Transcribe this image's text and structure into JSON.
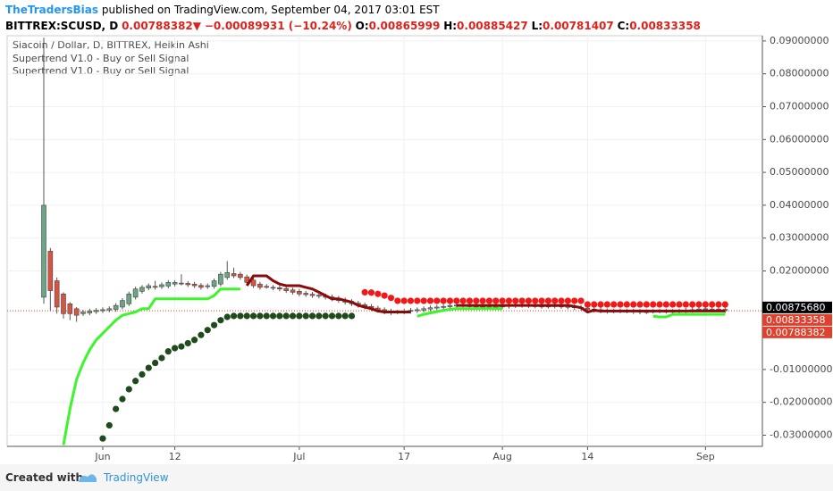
{
  "header": {
    "author": "TheTradersBias",
    "published": "published on TradingView.com, September 04, 2017 03:01 EST",
    "symbol": "BITTREX:SCUSD, D",
    "last": "0.00788382",
    "arrow": "▼",
    "change": "−0.00089931 (−10.24%)",
    "ohlc": [
      {
        "label": "O:",
        "value": "0.00865999"
      },
      {
        "label": "H:",
        "value": "0.00885427"
      },
      {
        "label": "L:",
        "value": "0.00781407"
      },
      {
        "label": "C:",
        "value": "0.00833358"
      }
    ]
  },
  "chart_data": {
    "type": "candlestick",
    "legend": [
      "Siacoin / Dollar, D, BITTREX, Heikin Ashi",
      "Supertrend V1.0 - Buy or Sell Signal",
      "Supertrend V1.0 - Buy or Sell Signal"
    ],
    "categories": [
      null,
      null,
      null,
      null,
      null,
      null,
      null,
      null,
      null,
      "Jun",
      null,
      null,
      null,
      null,
      null,
      null,
      null,
      null,
      null,
      null,
      "12",
      null,
      null,
      null,
      null,
      null,
      null,
      null,
      null,
      null,
      null,
      null,
      null,
      null,
      null,
      null,
      null,
      null,
      null,
      "Jul",
      null,
      null,
      null,
      null,
      null,
      null,
      null,
      null,
      null,
      null,
      null,
      null,
      null,
      null,
      null,
      "17",
      null,
      null,
      null,
      null,
      null,
      null,
      null,
      null,
      null,
      null,
      null,
      null,
      null,
      null,
      "Aug",
      null,
      null,
      null,
      null,
      null,
      null,
      null,
      null,
      null,
      null,
      null,
      null,
      "14",
      null,
      null,
      null,
      null,
      null,
      null,
      null,
      null,
      null,
      null,
      null,
      null,
      null,
      null,
      null,
      null,
      null,
      "Sep",
      null,
      null,
      null
    ],
    "open": [
      0.012,
      0.026,
      0.017,
      0.013,
      0.01,
      0.0085,
      0.007,
      0.0072,
      0.0076,
      0.0079,
      0.0081,
      0.0083,
      0.009,
      0.01,
      0.012,
      0.0138,
      0.0148,
      0.0153,
      0.0152,
      0.0154,
      0.016,
      0.0163,
      0.0162,
      0.016,
      0.0156,
      0.0152,
      0.0153,
      0.016,
      0.018,
      0.0192,
      0.019,
      0.0182,
      0.0172,
      0.016,
      0.0153,
      0.015,
      0.0149,
      0.0146,
      0.0142,
      0.0138,
      0.0132,
      0.0129,
      0.0126,
      0.0124,
      0.0121,
      0.0117,
      0.0112,
      0.0107,
      0.0102,
      0.0097,
      0.0092,
      0.0087,
      0.0082,
      0.0078,
      0.0075,
      0.0075,
      0.0077,
      0.0079,
      0.0081,
      0.0084,
      0.0087,
      0.0089,
      0.0091,
      0.0093,
      0.0095,
      0.0094,
      0.0093,
      0.0091,
      0.009,
      0.0091,
      0.0091,
      0.0092,
      0.0094,
      0.0095,
      0.0095,
      0.0094,
      0.0093,
      0.0093,
      0.0093,
      0.0093,
      0.0092,
      0.0091,
      0.0089,
      0.0087,
      0.0084,
      0.0082,
      0.0079,
      0.0078,
      0.0078,
      0.0078,
      0.0078,
      0.0077,
      0.0076,
      0.0076,
      0.0077,
      0.0077,
      0.0077,
      0.0077,
      0.0078,
      0.008,
      0.0082,
      0.0083,
      0.0084,
      0.0084,
      0.0083
    ],
    "high": [
      0.091,
      0.027,
      0.018,
      0.0135,
      0.0105,
      0.009,
      0.0082,
      0.0085,
      0.0087,
      0.0089,
      0.0092,
      0.0102,
      0.0117,
      0.0137,
      0.0152,
      0.0157,
      0.0162,
      0.017,
      0.0165,
      0.0172,
      0.0172,
      0.019,
      0.0169,
      0.0167,
      0.0163,
      0.0162,
      0.0177,
      0.0197,
      0.023,
      0.021,
      0.0197,
      0.0189,
      0.0179,
      0.0167,
      0.016,
      0.0157,
      0.0156,
      0.0153,
      0.0149,
      0.0145,
      0.0139,
      0.0136,
      0.0133,
      0.0131,
      0.0128,
      0.0124,
      0.0119,
      0.0114,
      0.0109,
      0.0104,
      0.0099,
      0.0094,
      0.0089,
      0.0085,
      0.0082,
      0.0085,
      0.0087,
      0.0089,
      0.0092,
      0.0095,
      0.0097,
      0.0099,
      0.0102,
      0.0103,
      0.0102,
      0.0101,
      0.01,
      0.0098,
      0.0097,
      0.0099,
      0.01,
      0.0102,
      0.0103,
      0.0102,
      0.0102,
      0.0101,
      0.01,
      0.01,
      0.0101,
      0.01,
      0.0099,
      0.0098,
      0.0096,
      0.0094,
      0.0091,
      0.0089,
      0.0086,
      0.0085,
      0.0086,
      0.0085,
      0.0085,
      0.0084,
      0.0083,
      0.0084,
      0.0085,
      0.0085,
      0.0084,
      0.0085,
      0.0087,
      0.0089,
      0.0091,
      0.0092,
      0.0091,
      0.0091,
      0.009
    ],
    "low": [
      0.01,
      0.008,
      0.007,
      0.0055,
      0.005,
      0.0045,
      0.0063,
      0.0065,
      0.0069,
      0.0072,
      0.0074,
      0.0076,
      0.0083,
      0.0093,
      0.0113,
      0.0131,
      0.0141,
      0.0143,
      0.0145,
      0.0147,
      0.0153,
      0.0156,
      0.0151,
      0.0148,
      0.0143,
      0.0145,
      0.0146,
      0.0153,
      0.0173,
      0.0178,
      0.0173,
      0.0158,
      0.0148,
      0.0143,
      0.0146,
      0.0141,
      0.0138,
      0.0133,
      0.0128,
      0.0123,
      0.0121,
      0.0118,
      0.0116,
      0.0113,
      0.0108,
      0.0103,
      0.0098,
      0.0093,
      0.0088,
      0.0083,
      0.0078,
      0.0073,
      0.0068,
      0.0066,
      0.0068,
      0.0068,
      0.007,
      0.0072,
      0.0074,
      0.0077,
      0.008,
      0.0082,
      0.0084,
      0.0086,
      0.0087,
      0.0085,
      0.0083,
      0.0082,
      0.0083,
      0.0084,
      0.0084,
      0.0085,
      0.0087,
      0.0088,
      0.0087,
      0.0086,
      0.0085,
      0.0085,
      0.0086,
      0.0085,
      0.0083,
      0.0081,
      0.0079,
      0.0076,
      0.0073,
      0.0071,
      0.007,
      0.0071,
      0.0071,
      0.0071,
      0.0069,
      0.0068,
      0.0069,
      0.007,
      0.0071,
      0.007,
      0.0069,
      0.0069,
      0.0071,
      0.0073,
      0.0075,
      0.0077,
      0.0077,
      0.0076,
      0.0072
    ],
    "close": [
      0.04,
      0.014,
      0.009,
      0.007,
      0.007,
      0.0065,
      0.0075,
      0.0078,
      0.008,
      0.0082,
      0.0085,
      0.0095,
      0.011,
      0.013,
      0.0145,
      0.015,
      0.0155,
      0.015,
      0.0158,
      0.0165,
      0.0165,
      0.0162,
      0.0158,
      0.0155,
      0.015,
      0.0155,
      0.017,
      0.019,
      0.0195,
      0.0185,
      0.018,
      0.0165,
      0.0155,
      0.015,
      0.015,
      0.0148,
      0.0145,
      0.014,
      0.0135,
      0.013,
      0.0128,
      0.0125,
      0.0123,
      0.012,
      0.0115,
      0.011,
      0.0105,
      0.01,
      0.0095,
      0.009,
      0.0085,
      0.008,
      0.0075,
      0.0073,
      0.0075,
      0.0078,
      0.008,
      0.0082,
      0.0085,
      0.0088,
      0.009,
      0.0092,
      0.0095,
      0.0096,
      0.0094,
      0.0092,
      0.009,
      0.0089,
      0.009,
      0.0092,
      0.0093,
      0.0095,
      0.0096,
      0.0095,
      0.0094,
      0.0093,
      0.0092,
      0.0093,
      0.0094,
      0.0092,
      0.009,
      0.0088,
      0.0086,
      0.0083,
      0.008,
      0.0078,
      0.0077,
      0.0078,
      0.0079,
      0.0078,
      0.0076,
      0.0075,
      0.0076,
      0.0077,
      0.0078,
      0.0077,
      0.0076,
      0.0078,
      0.008,
      0.0082,
      0.0084,
      0.0085,
      0.0084,
      0.0083,
      0.0079
    ],
    "up_color": "#6ba583",
    "down_color": "#d75442",
    "lines": [
      {
        "color": "#3cf52a",
        "values": [
          null,
          null,
          null,
          -0.033,
          -0.022,
          -0.013,
          -0.008,
          -0.004,
          -0.001,
          0.001,
          0.003,
          0.005,
          0.0065,
          0.007,
          0.0075,
          0.0085,
          0.0085,
          0.0115,
          0.0115,
          0.0115,
          0.0115,
          0.0115,
          0.0115,
          0.0115,
          0.0115,
          0.0115,
          0.0125,
          0.0145,
          0.0145,
          0.0145,
          0.0145,
          null,
          null,
          null,
          null,
          null,
          null,
          null,
          null,
          null,
          null,
          null,
          null,
          null,
          null,
          null,
          null,
          null,
          null,
          null,
          null,
          null,
          null,
          null,
          null,
          null,
          null,
          0.0062,
          0.0068,
          0.0072,
          0.0076,
          0.008,
          0.0083,
          0.0085,
          0.0085,
          0.0085,
          0.0085,
          0.0085,
          0.0085,
          0.0085,
          0.0085,
          null,
          null,
          null,
          null,
          null,
          null,
          null,
          null,
          null,
          null,
          null,
          null,
          null,
          null,
          null,
          null,
          null,
          null,
          null,
          null,
          null,
          null,
          0.0062,
          0.006,
          0.006,
          0.0068,
          0.0068,
          0.0068,
          0.0068,
          0.0068,
          0.0068,
          0.0068,
          0.0068,
          0.0068
        ]
      },
      {
        "color": "#8b0a0a",
        "values": [
          null,
          null,
          null,
          null,
          null,
          null,
          null,
          null,
          null,
          null,
          null,
          null,
          null,
          null,
          null,
          null,
          null,
          null,
          null,
          null,
          null,
          null,
          null,
          null,
          null,
          null,
          null,
          null,
          null,
          null,
          null,
          0.0155,
          0.0185,
          0.0185,
          0.0185,
          0.017,
          0.016,
          0.0155,
          0.0155,
          0.0155,
          0.015,
          0.0145,
          0.0135,
          0.0125,
          0.0115,
          0.0115,
          0.011,
          0.0105,
          0.0095,
          0.009,
          0.0085,
          0.0078,
          0.0075,
          0.0075,
          0.0075,
          0.0075,
          0.0075,
          null,
          null,
          null,
          null,
          null,
          null,
          0.0095,
          0.0095,
          0.0095,
          0.0095,
          0.0095,
          0.0095,
          0.0095,
          0.0095,
          0.0095,
          0.0095,
          0.0095,
          0.0095,
          0.0095,
          0.0095,
          0.0095,
          0.0095,
          0.0095,
          0.0095,
          0.0092,
          0.0088,
          0.0075,
          0.008,
          0.0078,
          0.0078,
          0.0078,
          0.0078,
          0.0078,
          0.0078,
          0.0078,
          0.0078,
          0.0078,
          0.0078,
          0.0078,
          0.0078,
          0.0078,
          0.0078,
          0.0078,
          0.0078,
          0.0078,
          0.0078,
          0.0078,
          0.0078
        ]
      }
    ],
    "dots": [
      {
        "color": "#1f4a1c",
        "values": [
          null,
          null,
          null,
          null,
          null,
          null,
          null,
          null,
          null,
          -0.031,
          -0.027,
          -0.022,
          -0.019,
          -0.016,
          -0.0135,
          -0.0115,
          -0.0095,
          -0.008,
          -0.0065,
          -0.0045,
          -0.0035,
          -0.003,
          -0.002,
          -0.001,
          0.0005,
          0.002,
          0.0035,
          0.005,
          0.006,
          0.0063,
          0.0063,
          0.0063,
          0.0063,
          0.0063,
          0.0063,
          0.0063,
          0.0063,
          0.0063,
          0.0063,
          0.0063,
          0.0063,
          0.0063,
          0.0063,
          0.0063,
          0.0063,
          0.0063,
          0.0063,
          0.0063,
          null,
          null,
          null,
          null,
          null,
          null,
          null,
          null,
          null,
          null,
          null,
          null,
          null,
          null,
          null,
          null,
          null,
          null,
          null,
          null,
          null,
          null,
          null,
          null,
          null,
          null,
          null,
          null,
          null,
          null,
          null,
          null,
          null,
          null,
          null,
          null,
          null,
          null,
          null,
          null,
          null,
          null,
          null,
          null,
          null,
          null,
          null,
          null,
          null,
          null,
          null,
          null,
          null,
          null,
          null,
          null,
          null
        ]
      },
      {
        "color": "#f21818",
        "values": [
          null,
          null,
          null,
          null,
          null,
          null,
          null,
          null,
          null,
          null,
          null,
          null,
          null,
          null,
          null,
          null,
          null,
          null,
          null,
          null,
          null,
          null,
          null,
          null,
          null,
          null,
          null,
          null,
          null,
          null,
          null,
          null,
          null,
          null,
          null,
          null,
          null,
          null,
          null,
          null,
          null,
          null,
          null,
          null,
          null,
          null,
          null,
          null,
          null,
          0.0135,
          0.0134,
          0.013,
          0.0125,
          0.0118,
          0.0109,
          0.0109,
          0.0109,
          0.0109,
          0.0109,
          0.0109,
          0.0109,
          0.0109,
          0.0109,
          0.0109,
          0.0109,
          0.0109,
          0.0109,
          0.0109,
          0.0109,
          0.0109,
          0.0109,
          0.0109,
          0.0109,
          0.0109,
          0.0109,
          0.0109,
          0.0109,
          0.0109,
          0.0109,
          0.0109,
          0.0109,
          0.0109,
          0.0109,
          0.0098,
          0.0098,
          0.0098,
          0.0098,
          0.0098,
          0.0098,
          0.0098,
          0.0098,
          0.0098,
          0.0098,
          0.0098,
          0.0098,
          0.0098,
          0.0098,
          0.0098,
          0.0098,
          0.0098,
          0.0098,
          0.0098,
          0.0098,
          0.0098,
          0.0098
        ]
      }
    ],
    "price_labels": {
      "values": [
        0.0087568,
        0.00833358,
        0.00788382
      ],
      "value_labels": [
        "0.00875680",
        "0.00833358",
        "0.00788382"
      ],
      "colors": [
        "#000000",
        "#e0402c",
        "#e0402c"
      ]
    },
    "ylim": [
      -0.0334,
      0.0916
    ],
    "yticks": [
      {
        "value": 0.09,
        "label": "0.09000000"
      },
      {
        "value": 0.08,
        "label": "0.08000000"
      },
      {
        "value": 0.07,
        "label": "0.07000000"
      },
      {
        "value": 0.06,
        "label": "0.06000000"
      },
      {
        "value": 0.05,
        "label": "0.05000000"
      },
      {
        "value": 0.04,
        "label": "0.04000000"
      },
      {
        "value": 0.03,
        "label": "0.03000000"
      },
      {
        "value": 0.02,
        "label": "0.02000000"
      },
      {
        "value": -0.01,
        "label": "-0.01000000"
      },
      {
        "value": -0.02,
        "label": "-0.02000000"
      },
      {
        "value": -0.03,
        "label": "-0.03000000"
      }
    ],
    "grid": true
  },
  "footer": {
    "created": "Created with",
    "brand": "TradingView"
  }
}
